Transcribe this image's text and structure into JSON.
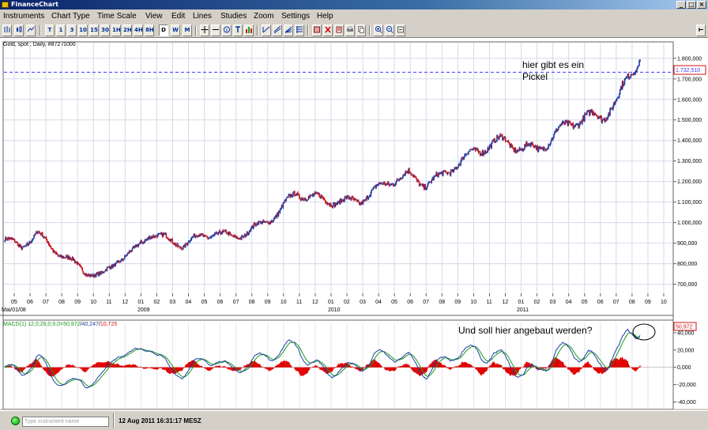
{
  "window": {
    "title": "FinanceChart",
    "buttons": [
      "_",
      "□",
      "×"
    ]
  },
  "menu": [
    "Instruments",
    "Chart Type",
    "Time Scale",
    "View",
    "Edit",
    "Lines",
    "Studies",
    "Zoom",
    "Settings",
    "Help"
  ],
  "toolbar": {
    "timeframes": [
      "T",
      "1",
      "3",
      "10",
      "15",
      "30",
      "1H",
      "2H",
      "4H",
      "8H",
      "D",
      "W",
      "M"
    ],
    "selected": "D"
  },
  "chart": {
    "header": "Gold, spot , Daily, #872 /1000",
    "price_tag": "1.732,510",
    "price_axis": [
      "1.800,000",
      "1.700,000",
      "1.600,000",
      "1.500,000",
      "1.400,000",
      "1.300,000",
      "1.200,000",
      "1.100,000",
      "1.000,000",
      "900,000",
      "800,000",
      "700,000"
    ],
    "annotation_line1": "hier gibt es ein",
    "annotation_line2": "Pickel",
    "time_axis_months": [
      "05",
      "06",
      "07",
      "08",
      "09",
      "10",
      "11",
      "12",
      "01",
      "02",
      "03",
      "04",
      "05",
      "06",
      "07",
      "08",
      "09",
      "10",
      "11",
      "12",
      "01",
      "02",
      "03",
      "04",
      "05",
      "06",
      "07",
      "08",
      "09",
      "10",
      "11",
      "12",
      "01",
      "02",
      "03",
      "04",
      "05",
      "06",
      "07",
      "08",
      "09",
      "10"
    ],
    "start_label": "Mai/01/08",
    "year_labels": [
      "2009",
      "2010",
      "2011"
    ]
  },
  "macd": {
    "header_prefix": "MACD(1) 12,0;26,0;9,0=",
    "v1": "50,972",
    "v2": "40,247",
    "v3": "10,725",
    "value_tag": "50,972",
    "axis": [
      "40,000",
      "20,000",
      "0,000",
      "-20,000",
      "-40,000"
    ],
    "annotation": "Und soll hier angebaut werden?"
  },
  "colors": {
    "title_bar": "#0a246a",
    "candle_up": "#1f3fa8",
    "candle_down": "#d01010",
    "price_line": "#3b3bff",
    "macd_line": "#1f3fa8",
    "signal_line": "#1a9a1a",
    "histogram": "#e00000"
  },
  "status": {
    "search_placeholder": "Type instrument name",
    "datetime": "12 Aug 2011 16:31:17 MESZ"
  },
  "chart_data": {
    "type": "line",
    "title": "Gold, spot , Daily, #872 /1000",
    "x": [
      "2008-05",
      "2008-06",
      "2008-07",
      "2008-08",
      "2008-09",
      "2008-10",
      "2008-11",
      "2008-12",
      "2009-01",
      "2009-02",
      "2009-03",
      "2009-04",
      "2009-05",
      "2009-06",
      "2009-07",
      "2009-08",
      "2009-09",
      "2009-10",
      "2009-11",
      "2009-12",
      "2010-01",
      "2010-02",
      "2010-03",
      "2010-04",
      "2010-05",
      "2010-06",
      "2010-07",
      "2010-08",
      "2010-09",
      "2010-10",
      "2010-11",
      "2010-12",
      "2011-01",
      "2011-02",
      "2011-03",
      "2011-04",
      "2011-05",
      "2011-06",
      "2011-07",
      "2011-08"
    ],
    "series": [
      {
        "values": [
          920,
          880,
          950,
          870,
          820,
          760,
          740,
          820,
          860,
          950,
          920,
          890,
          930,
          950,
          930,
          950,
          1000,
          1050,
          1150,
          1120,
          1110,
          1100,
          1110,
          1160,
          1210,
          1230,
          1190,
          1220,
          1290,
          1340,
          1380,
          1400,
          1360,
          1360,
          1420,
          1490,
          1510,
          1520,
          1600,
          1780
        ]
      }
    ],
    "ylim": [
      660,
      1830
    ],
    "macd": {
      "ylim": [
        -45,
        50
      ],
      "last": {
        "macd": 50.972,
        "signal": 40.247,
        "hist": 10.725
      }
    }
  }
}
